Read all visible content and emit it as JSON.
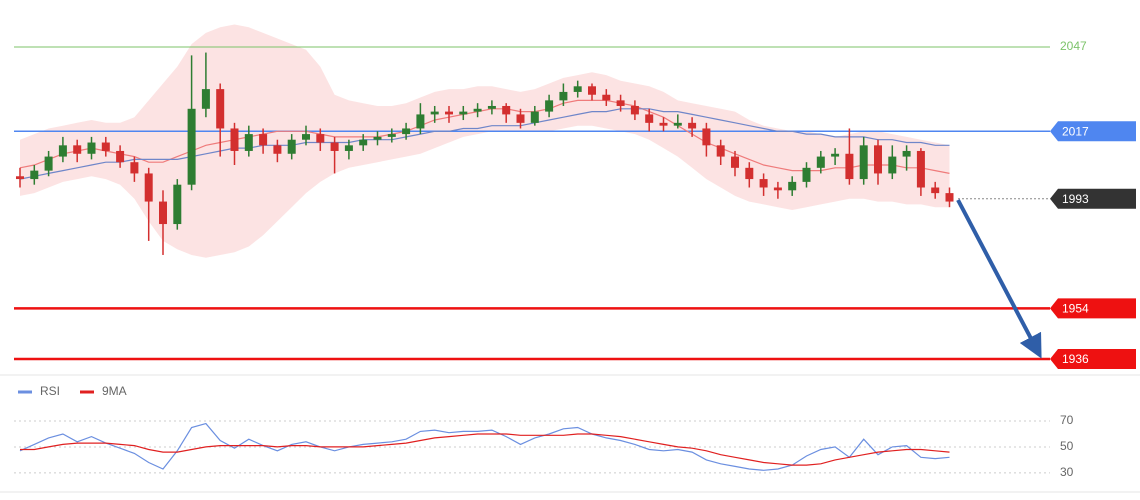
{
  "chart_data": [
    {
      "type": "candlestick",
      "ylim": [
        1930.3,
        2063.7
      ],
      "bull_color": "#2e7d32",
      "bear_color": "#d32f2f",
      "candles": [
        [
          2001,
          2004,
          1997,
          2000
        ],
        [
          2000,
          2005,
          1998,
          2003
        ],
        [
          2003,
          2010,
          2001,
          2008
        ],
        [
          2008,
          2015,
          2006,
          2012
        ],
        [
          2012,
          2014,
          2006,
          2009
        ],
        [
          2009,
          2015,
          2007,
          2013
        ],
        [
          2013,
          2015,
          2008,
          2010
        ],
        [
          2010,
          2012,
          2004,
          2006
        ],
        [
          2006,
          2008,
          1999,
          2002
        ],
        [
          2002,
          2004,
          1978,
          1992
        ],
        [
          1992,
          1996,
          1973,
          1984
        ],
        [
          1984,
          2000,
          1982,
          1998
        ],
        [
          1998,
          2044,
          1996,
          2025
        ],
        [
          2025,
          2045,
          2022,
          2032
        ],
        [
          2032,
          2034,
          2008,
          2018
        ],
        [
          2018,
          2020,
          2005,
          2010
        ],
        [
          2010,
          2019,
          2008,
          2016
        ],
        [
          2016,
          2018,
          2009,
          2012
        ],
        [
          2012,
          2014,
          2006,
          2009
        ],
        [
          2009,
          2016,
          2007,
          2014
        ],
        [
          2014,
          2019,
          2012,
          2016
        ],
        [
          2016,
          2018,
          2010,
          2013
        ],
        [
          2013,
          2015,
          2002,
          2010
        ],
        [
          2010,
          2014,
          2007,
          2012
        ],
        [
          2012,
          2016,
          2010,
          2014
        ],
        [
          2014,
          2017,
          2012,
          2015
        ],
        [
          2015,
          2018,
          2013,
          2016
        ],
        [
          2016,
          2020,
          2014,
          2018
        ],
        [
          2018,
          2027,
          2016,
          2023
        ],
        [
          2023,
          2026,
          2020,
          2024
        ],
        [
          2024,
          2026,
          2020,
          2023
        ],
        [
          2023,
          2026,
          2021,
          2024
        ],
        [
          2024,
          2027,
          2022,
          2025
        ],
        [
          2025,
          2028,
          2023,
          2026
        ],
        [
          2026,
          2027,
          2020,
          2023
        ],
        [
          2023,
          2025,
          2018,
          2020
        ],
        [
          2020,
          2026,
          2019,
          2024
        ],
        [
          2024,
          2030,
          2022,
          2028
        ],
        [
          2028,
          2034,
          2026,
          2031
        ],
        [
          2031,
          2035,
          2029,
          2033
        ],
        [
          2033,
          2034,
          2028,
          2030
        ],
        [
          2030,
          2032,
          2026,
          2028
        ],
        [
          2028,
          2030,
          2024,
          2026
        ],
        [
          2026,
          2028,
          2021,
          2023
        ],
        [
          2023,
          2025,
          2017,
          2020
        ],
        [
          2020,
          2022,
          2017,
          2019
        ],
        [
          2019,
          2023,
          2018,
          2020
        ],
        [
          2020,
          2022,
          2015,
          2018
        ],
        [
          2018,
          2020,
          2008,
          2012
        ],
        [
          2012,
          2014,
          2005,
          2008
        ],
        [
          2008,
          2010,
          2001,
          2004
        ],
        [
          2004,
          2006,
          1997,
          2000
        ],
        [
          2000,
          2002,
          1994,
          1997
        ],
        [
          1997,
          1999,
          1993,
          1996
        ],
        [
          1996,
          2001,
          1994,
          1999
        ],
        [
          1999,
          2006,
          1997,
          2004
        ],
        [
          2004,
          2010,
          2002,
          2008
        ],
        [
          2008,
          2011,
          2005,
          2009
        ],
        [
          2009,
          2018,
          1998,
          2000
        ],
        [
          2000,
          2015,
          1998,
          2012
        ],
        [
          2012,
          2014,
          1998,
          2002
        ],
        [
          2002,
          2012,
          2000,
          2008
        ],
        [
          2008,
          2012,
          2003,
          2010
        ],
        [
          2010,
          2011,
          1994,
          1997
        ],
        [
          1997,
          1999,
          1993,
          1995
        ],
        [
          1995,
          1997,
          1990,
          1992
        ]
      ],
      "bollinger": {
        "color": "#fbdada",
        "upper": [
          2014,
          2016,
          2018,
          2019,
          2020,
          2021,
          2020,
          2020,
          2022,
          2028,
          2034,
          2040,
          2048,
          2052,
          2054,
          2055,
          2054,
          2052,
          2050,
          2048,
          2046,
          2040,
          2030,
          2028,
          2027,
          2026,
          2026,
          2027,
          2029,
          2031,
          2032,
          2032,
          2033,
          2033,
          2032,
          2031,
          2032,
          2034,
          2036,
          2037,
          2038,
          2037,
          2035,
          2034,
          2033,
          2031,
          2028,
          2027,
          2026,
          2025,
          2024,
          2021,
          2019,
          2018,
          2017,
          2017,
          2016,
          2015,
          2016,
          2017,
          2017,
          2016,
          2015,
          2014,
          2013,
          2012
        ],
        "lower": [
          1994,
          1995,
          1997,
          1999,
          2000,
          2001,
          2000,
          1998,
          1993,
          1985,
          1978,
          1975,
          1973,
          1972,
          1973,
          1974,
          1976,
          1980,
          1985,
          1990,
          1995,
          1999,
          2002,
          2004,
          2005,
          2006,
          2007,
          2008,
          2009,
          2011,
          2013,
          2015,
          2016,
          2017,
          2017,
          2017,
          2017,
          2017,
          2018,
          2019,
          2019,
          2018,
          2017,
          2016,
          2014,
          2011,
          2008,
          2004,
          2000,
          1997,
          1994,
          1992,
          1991,
          1990,
          1989,
          1990,
          1991,
          1992,
          1993,
          1993,
          1992,
          1992,
          1991,
          1991,
          1990,
          1990
        ]
      },
      "series": [
        {
          "color": "#ef7b7b",
          "values": [
            2004,
            2005,
            2007,
            2009,
            2010,
            2011,
            2010,
            2009,
            2008,
            2006,
            2006,
            2008,
            2010,
            2012,
            2013,
            2014,
            2015,
            2016,
            2017,
            2017,
            2017,
            2016,
            2015,
            2015,
            2015,
            2015,
            2016,
            2017,
            2019,
            2021,
            2022,
            2023,
            2024,
            2025,
            2025,
            2024,
            2024,
            2025,
            2027,
            2028,
            2028,
            2028,
            2027,
            2026,
            2024,
            2022,
            2019,
            2016,
            2013,
            2011,
            2009,
            2007,
            2005,
            2004,
            2003,
            2003,
            2003,
            2004,
            2004,
            2005,
            2005,
            2005,
            2004,
            2004,
            2003,
            2002
          ]
        },
        {
          "color": "#6f86c9",
          "values": [
            2000,
            2001,
            2002,
            2003,
            2004,
            2005,
            2006,
            2006,
            2007,
            2007,
            2007,
            2007,
            2008,
            2009,
            2010,
            2011,
            2011,
            2012,
            2012,
            2012,
            2013,
            2013,
            2013,
            2013,
            2014,
            2014,
            2014,
            2015,
            2016,
            2017,
            2017,
            2018,
            2018,
            2019,
            2019,
            2019,
            2020,
            2021,
            2022,
            2023,
            2024,
            2024,
            2025,
            2025,
            2025,
            2024,
            2024,
            2023,
            2022,
            2021,
            2020,
            2019,
            2018,
            2017,
            2017,
            2016,
            2016,
            2015,
            2015,
            2015,
            2014,
            2014,
            2013,
            2013,
            2012,
            2012
          ]
        }
      ],
      "levels": [
        {
          "value": 2047,
          "color": "#7cc36a",
          "style": "text"
        },
        {
          "value": 2017,
          "color": "#4f86f0",
          "style": "tag"
        },
        {
          "value": 1993,
          "color": "#333333",
          "style": "tag"
        },
        {
          "value": 1954,
          "color": "#ee1111",
          "style": "tag"
        },
        {
          "value": 1936,
          "color": "#ee1111",
          "style": "tag"
        }
      ]
    },
    {
      "type": "line",
      "ylim": [
        13,
        97.7
      ],
      "yticks": [
        70,
        50,
        30
      ],
      "grid": true,
      "series": [
        {
          "name": "RSI",
          "color": "#6b8fe0",
          "values": [
            47,
            52,
            57,
            60,
            54,
            58,
            53,
            49,
            45,
            38,
            33,
            47,
            65,
            68,
            55,
            49,
            56,
            51,
            47,
            52,
            54,
            50,
            47,
            50,
            52,
            53,
            54,
            56,
            62,
            63,
            61,
            62,
            62,
            63,
            58,
            52,
            57,
            60,
            64,
            65,
            60,
            57,
            55,
            52,
            48,
            47,
            48,
            46,
            40,
            37,
            35,
            33,
            32,
            33,
            36,
            43,
            48,
            50,
            42,
            56,
            44,
            50,
            51,
            42,
            41,
            42
          ]
        },
        {
          "name": "9MA",
          "color": "#e02020",
          "values": [
            48,
            48,
            50,
            52,
            53,
            53,
            53,
            52,
            51,
            48,
            46,
            46,
            48,
            50,
            51,
            51,
            51,
            51,
            50,
            51,
            51,
            50,
            50,
            50,
            50,
            51,
            52,
            53,
            55,
            57,
            58,
            59,
            60,
            60,
            60,
            59,
            59,
            59,
            59,
            60,
            60,
            59,
            58,
            56,
            54,
            52,
            50,
            49,
            47,
            44,
            42,
            40,
            38,
            37,
            36,
            36,
            37,
            40,
            42,
            44,
            46,
            47,
            48,
            48,
            47,
            46
          ]
        }
      ]
    }
  ]
}
